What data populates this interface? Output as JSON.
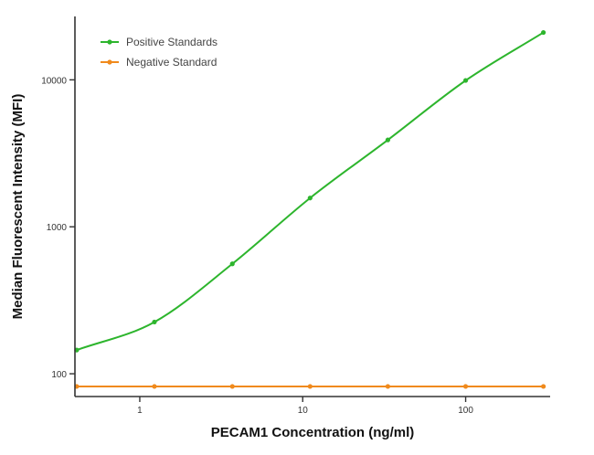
{
  "chart_data": {
    "type": "line",
    "title": "",
    "xlabel": "PECAM1 Concentration (ng/ml)",
    "ylabel": "Median  Fluorescent Intensity  (MFI)",
    "x_scale": "log",
    "y_scale": "log",
    "xlim": [
      0.4,
      330
    ],
    "ylim": [
      70,
      27000
    ],
    "x_ticks": [
      {
        "value": 1,
        "label": "1"
      },
      {
        "value": 10,
        "label": "10"
      },
      {
        "value": 100,
        "label": "100"
      }
    ],
    "y_ticks": [
      {
        "value": 100,
        "label": "100"
      },
      {
        "value": 1000,
        "label": "1000"
      },
      {
        "value": 10000,
        "label": "10000"
      }
    ],
    "grid": false,
    "legend_position": "top-left",
    "series": [
      {
        "name": "Positive Standards",
        "color": "#2db52d",
        "x": [
          0.41,
          1.23,
          3.7,
          11.1,
          33.3,
          100,
          300
        ],
        "y": [
          145,
          225,
          560,
          1570,
          3900,
          9900,
          21000
        ]
      },
      {
        "name": "Negative Standard",
        "color": "#f08a1c",
        "x": [
          0.41,
          1.23,
          3.7,
          11.1,
          33.3,
          100,
          300
        ],
        "y": [
          82,
          82,
          82,
          82,
          82,
          82,
          82
        ]
      }
    ]
  }
}
